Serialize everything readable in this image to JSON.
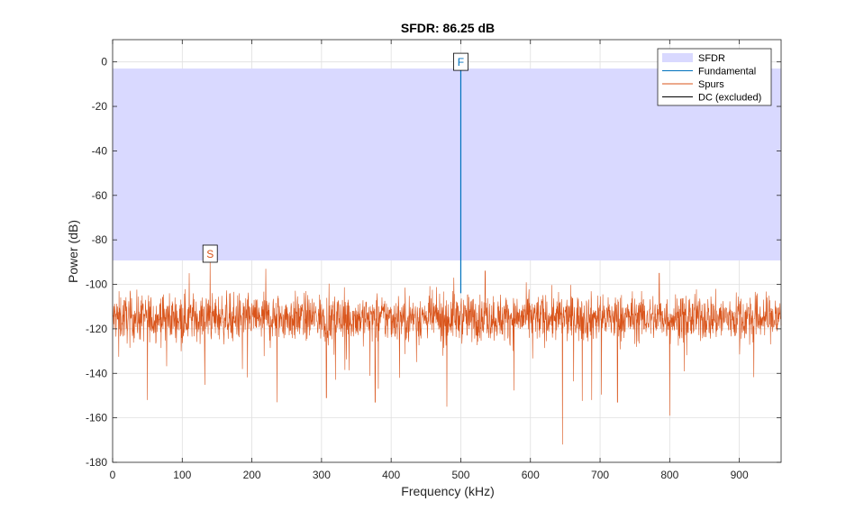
{
  "chart_data": {
    "type": "line",
    "title": "SFDR:  86.25 dB",
    "xlabel": "Frequency (kHz)",
    "ylabel": "Power (dB)",
    "xlim": [
      0,
      960
    ],
    "ylim": [
      -180,
      10
    ],
    "xticks": [
      0,
      100,
      200,
      300,
      400,
      500,
      600,
      700,
      800,
      900
    ],
    "yticks": [
      0,
      -20,
      -40,
      -60,
      -80,
      -100,
      -120,
      -140,
      -160,
      -180
    ],
    "grid": true,
    "legend_position": "top-right",
    "sfdr_region": {
      "upper_db": -3.0,
      "lower_db": -89.25,
      "color": "#d9d9ff"
    },
    "fundamental": {
      "frequency_khz": 500,
      "power_db": -3.0,
      "marker_label": "F",
      "color": "#0072bd"
    },
    "max_spur": {
      "frequency_khz": 140,
      "power_db": -89.25,
      "marker_label": "S",
      "color": "#d95319"
    },
    "noise_floor": {
      "mean_db": -115,
      "spread_db": 9,
      "color": "#d95319"
    },
    "spur_peaks": [
      {
        "frequency_khz": 140,
        "power_db": -89.25
      },
      {
        "frequency_khz": 110,
        "power_db": -95
      },
      {
        "frequency_khz": 220,
        "power_db": -93
      },
      {
        "frequency_khz": 490,
        "power_db": -97
      },
      {
        "frequency_khz": 535,
        "power_db": -94
      },
      {
        "frequency_khz": 785,
        "power_db": -95
      }
    ],
    "deep_nulls": [
      {
        "frequency_khz": 646,
        "power_db": -172
      },
      {
        "frequency_khz": 800,
        "power_db": -159
      },
      {
        "frequency_khz": 50,
        "power_db": -152
      },
      {
        "frequency_khz": 236,
        "power_db": -153
      },
      {
        "frequency_khz": 307,
        "power_db": -151
      },
      {
        "frequency_khz": 377,
        "power_db": -153
      },
      {
        "frequency_khz": 688,
        "power_db": -152
      },
      {
        "frequency_khz": 725,
        "power_db": -153
      },
      {
        "frequency_khz": 480,
        "power_db": -155
      }
    ],
    "legend": [
      {
        "label": "SFDR",
        "kind": "patch",
        "color": "#d9d9ff"
      },
      {
        "label": "Fundamental",
        "kind": "line",
        "color": "#0072bd"
      },
      {
        "label": "Spurs",
        "kind": "line",
        "color": "#d95319"
      },
      {
        "label": "DC (excluded)",
        "kind": "line",
        "color": "#000000"
      }
    ]
  }
}
